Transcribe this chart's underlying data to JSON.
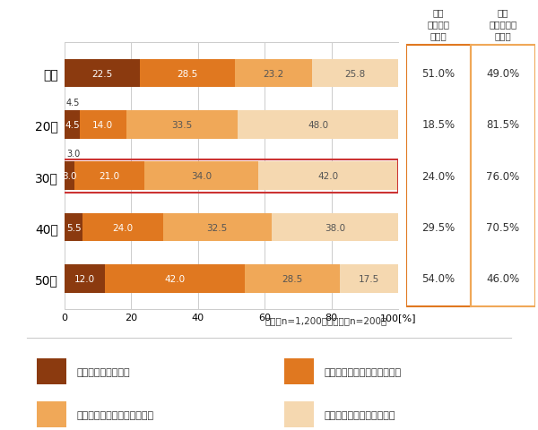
{
  "categories": [
    "全体",
    "20代",
    "30代",
    "40代",
    "50代"
  ],
  "series": [
    {
      "label": "金額を把握している",
      "color": "#8B3A0F",
      "values": [
        22.5,
        4.5,
        3.0,
        5.5,
        12.0
      ]
    },
    {
      "label": "金額をおおよそ把握している",
      "color": "#E07820",
      "values": [
        28.5,
        14.0,
        21.0,
        24.0,
        42.0
      ]
    },
    {
      "label": "金額はあまり把握していない",
      "color": "#F0A858",
      "values": [
        23.2,
        33.5,
        34.0,
        32.5,
        28.5
      ]
    },
    {
      "label": "金額は全く把握していない",
      "color": "#F5D8B0",
      "values": [
        25.8,
        48.0,
        42.0,
        38.0,
        17.5
      ]
    }
  ],
  "summary_col1_label": "把握\nしている\n（計）",
  "summary_col2_label": "把握\nしていない\n（計）",
  "summary_col1_values": [
    "51.0%",
    "18.5%",
    "24.0%",
    "29.5%",
    "54.0%"
  ],
  "summary_col2_values": [
    "49.0%",
    "81.5%",
    "76.0%",
    "70.5%",
    "46.0%"
  ],
  "footnote": "全体（n=1,200）各年代（n=200）",
  "xlabel_end": "100[%]",
  "xticks": [
    0,
    20,
    40,
    60,
    80,
    100
  ],
  "bar_highlight_index": 2,
  "bar_highlight_color": "#CC3333",
  "orange_box_color": "#E07820",
  "background_color": "#ffffff"
}
